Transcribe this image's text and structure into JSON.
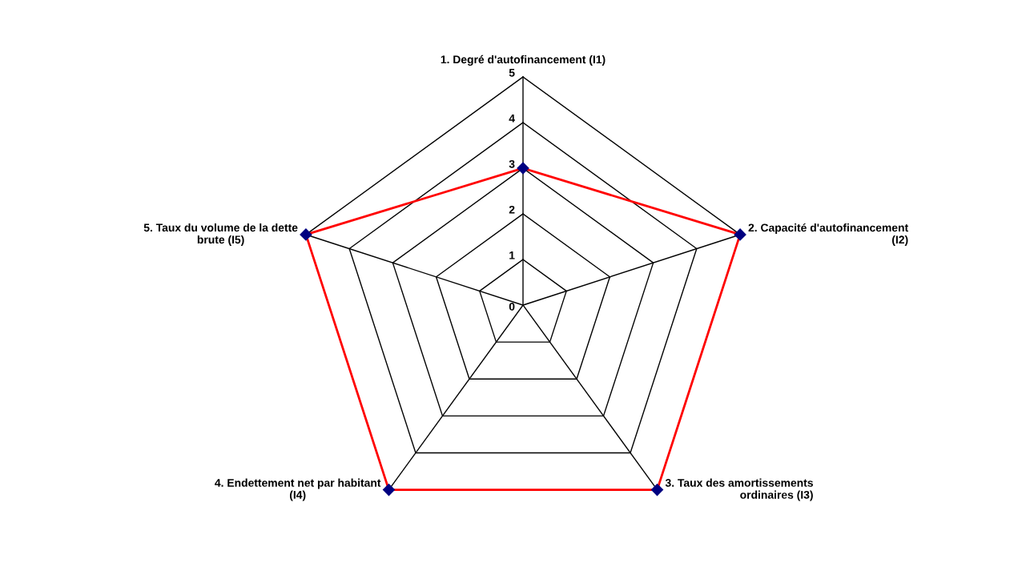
{
  "chart_data": {
    "type": "radar",
    "categories": [
      "1. Degré d'autofinancement (I1)",
      "2. Capacité d'autofinancement\n(I2)",
      "3. Taux des amortissements\nordinaires (I3)",
      "4. Endettement net par habitant\n(I4)",
      "5. Taux du volume de la dette\nbrute (I5)"
    ],
    "series": [
      {
        "color": "#ff0000",
        "colors": [
          "#000080",
          "#000080",
          "#000080",
          "#000080",
          "#000080"
        ],
        "values": [
          3,
          5,
          5,
          5,
          5
        ]
      }
    ],
    "ylim": [
      0,
      5
    ],
    "yticks": [
      0,
      1,
      2,
      3,
      4,
      5
    ],
    "grid": true,
    "marker": "diamond",
    "line_style": "solid"
  }
}
